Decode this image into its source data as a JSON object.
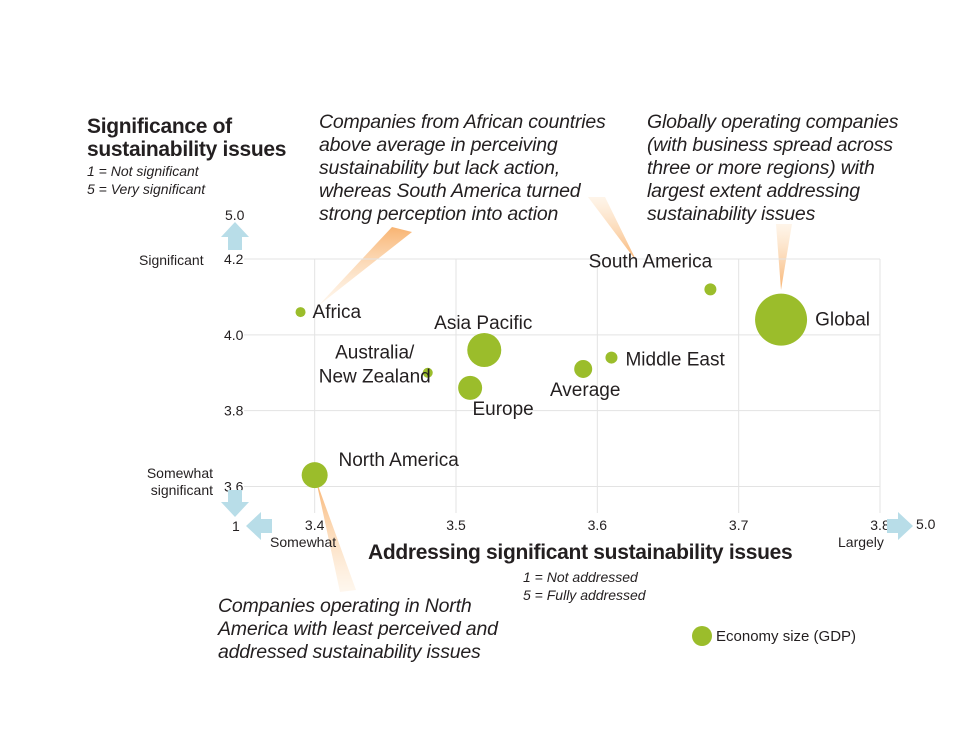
{
  "y_axis": {
    "title_line1": "Significance of",
    "title_line2": "sustainability issues",
    "scale_low": "1 = Not significant",
    "scale_high": "5 = Very significant",
    "top_value": "5.0",
    "high_label": "Significant",
    "low_label_line1": "Somewhat",
    "low_label_line2": "significant",
    "bottom_value": "1"
  },
  "x_axis": {
    "title": "Addressing significant sustainability issues",
    "scale_low": "1 = Not addressed",
    "scale_high": "5 = Fully addressed",
    "right_value": "5.0",
    "low_label": "Somewhat",
    "high_label": "Largely"
  },
  "callouts": {
    "africa": [
      "Companies from African countries",
      "above average in perceiving",
      "sustainability but lack action,",
      "whereas South America turned",
      "strong perception into action"
    ],
    "global": [
      "Globally operating companies",
      "(with business spread across",
      "three or more regions) with",
      "largest extent addressing",
      "sustainability issues"
    ],
    "north_america": [
      "Companies operating in North",
      "America with least perceived and",
      "addressed sustainability issues"
    ]
  },
  "legend": {
    "label": "Economy size (GDP)"
  },
  "colors": {
    "bubble": "#9bbd2b",
    "arrow": "#b8dde8",
    "grid": "#e3e3e3",
    "callout_wedge": "#f7b06a"
  },
  "chart_data": {
    "type": "scatter",
    "xlim": [
      3.35,
      3.8
    ],
    "ylim": [
      3.53,
      4.2
    ],
    "x_ticks": [
      "3.4",
      "3.5",
      "3.6",
      "3.7",
      "3.8"
    ],
    "y_ticks": [
      "3.6",
      "3.8",
      "4.0",
      "4.2"
    ],
    "grid": true,
    "points": [
      {
        "name": "Africa",
        "x": 3.39,
        "y": 4.06,
        "size": 5
      },
      {
        "name": "South America",
        "x": 3.68,
        "y": 4.12,
        "size": 6
      },
      {
        "name": "Global",
        "x": 3.73,
        "y": 4.04,
        "size": 26
      },
      {
        "name": "Asia Pacific",
        "x": 3.52,
        "y": 3.96,
        "size": 17
      },
      {
        "name": "Australia/ New Zealand",
        "x": 3.48,
        "y": 3.9,
        "size": 5
      },
      {
        "name": "Europe",
        "x": 3.51,
        "y": 3.86,
        "size": 12
      },
      {
        "name": "Average",
        "x": 3.59,
        "y": 3.91,
        "size": 9
      },
      {
        "name": "Middle East",
        "x": 3.61,
        "y": 3.94,
        "size": 6
      },
      {
        "name": "North America",
        "x": 3.4,
        "y": 3.63,
        "size": 13
      }
    ]
  }
}
